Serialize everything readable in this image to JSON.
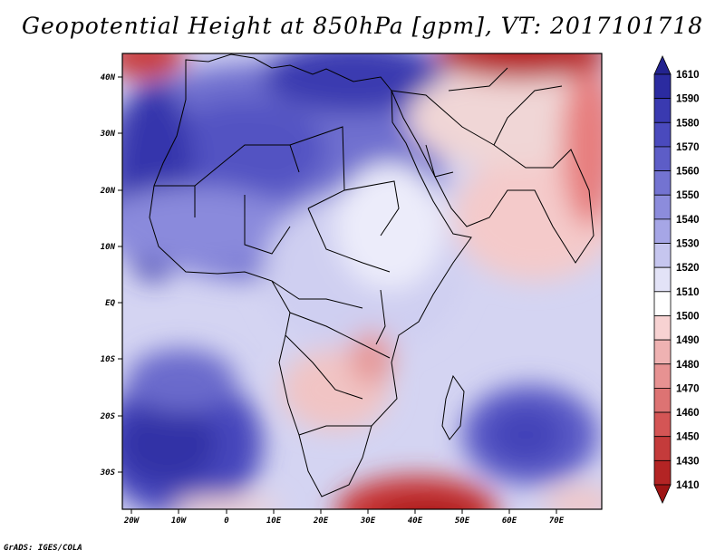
{
  "title": "Geopotential Height at 850hPa [gpm], VT: 2017101718",
  "credit": "GrADS: IGES/COLA",
  "map": {
    "region": "Africa",
    "variable": "Geopotential Height",
    "level": "850hPa",
    "units": "gpm",
    "valid_time": "2017101718",
    "lon_labels": [
      "20W",
      "10W",
      "0",
      "10E",
      "20E",
      "30E",
      "40E",
      "50E",
      "60E",
      "70E"
    ],
    "lat_labels": [
      "40N",
      "30N",
      "20N",
      "10N",
      "EQ",
      "10S",
      "20S",
      "30S"
    ]
  },
  "colorbar": {
    "labels": [
      "1610",
      "1590",
      "1580",
      "1570",
      "1560",
      "1550",
      "1540",
      "1530",
      "1520",
      "1510",
      "1500",
      "1490",
      "1480",
      "1470",
      "1460",
      "1450",
      "1430",
      "1410"
    ],
    "colors": [
      "#23238f",
      "#2b2ba0",
      "#3a3ab0",
      "#4a4abd",
      "#5d5dc7",
      "#7373d1",
      "#8c8cdc",
      "#a6a6e6",
      "#c6c6ef",
      "#e3e3f7",
      "#ffffff",
      "#f7d2d2",
      "#efb2b2",
      "#e79292",
      "#dd7373",
      "#d45555",
      "#c43b3b",
      "#b32424",
      "#9e1414"
    ]
  }
}
